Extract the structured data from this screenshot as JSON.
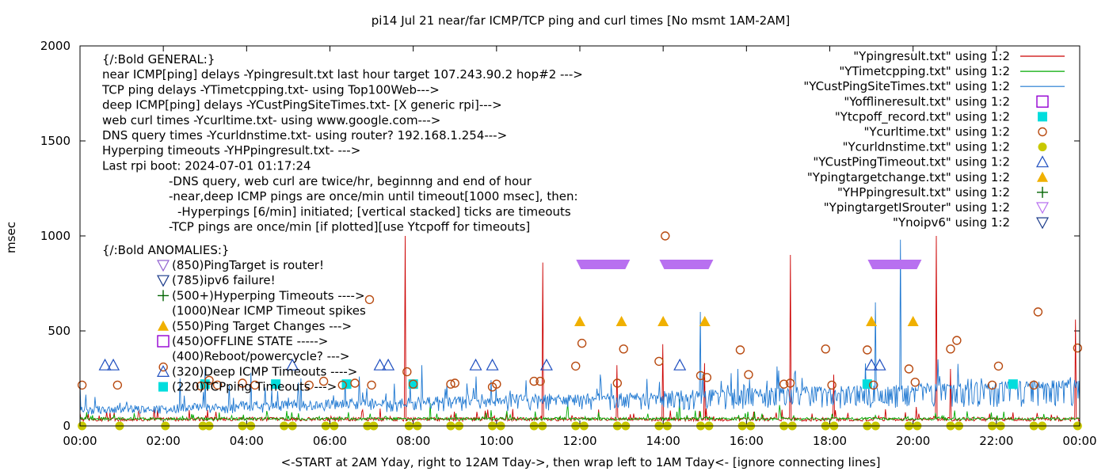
{
  "chart_data": {
    "type": "line",
    "title": "pi14 Jul 21  near/far ICMP/TCP ping and curl times [No msmt 1AM-2AM]",
    "xlabel": "<-START at 2AM Yday, right to 12AM Tday->, then wrap left to 1AM Tday<- [ignore connecting lines]",
    "ylabel": "msec",
    "xlim": [
      0,
      24
    ],
    "ylim": [
      0,
      2000
    ],
    "x_ticks": [
      "00:00",
      "02:00",
      "04:00",
      "06:00",
      "08:00",
      "10:00",
      "12:00",
      "14:00",
      "16:00",
      "18:00",
      "20:00",
      "22:00",
      "00:00"
    ],
    "y_ticks": [
      "0",
      "500",
      "1000",
      "1500",
      "2000"
    ],
    "grid": false,
    "legend_position": "top-right",
    "annotations": {
      "general": [
        "{/:Bold GENERAL:}",
        "near ICMP[ping] delays -Ypingresult.txt last hour target 107.243.90.2 hop#2 --->",
        "TCP ping delays -YTimetcpping.txt- using Top100Web--->",
        "deep ICMP[ping] delays -YCustPingSiteTimes.txt- [X generic rpi]--->",
        "web curl times -Ycurltime.txt- using www.google.com--->",
        "DNS query times -Ycurldnstime.txt- using router? 192.168.1.254--->",
        "Hyperping timeouts -YHPpingresult.txt- --->",
        "Last rpi boot: 2024-07-01 01:17:24"
      ],
      "notes": [
        "-DNS query, web curl are twice/hr, beginnng and end of hour",
        "-near,deep ICMP pings are once/min until timeout[1000 msec], then:",
        "-Hyperpings [6/min] initiated; [vertical stacked] ticks are timeouts",
        "-TCP pings are once/min [if plotted][use Ytcpoff for timeouts]"
      ],
      "anomalies_title": "{/:Bold ANOMALIES:}",
      "anomalies": [
        {
          "marker": "tri-down-violet",
          "text": "(850)PingTarget is router!"
        },
        {
          "marker": "tri-down-navy",
          "text": "(785)ipv6 failure!"
        },
        {
          "marker": "plus-green",
          "text": "(500+)Hyperping Timeouts ---->"
        },
        {
          "marker": "none",
          "text": "(1000)Near ICMP Timeout spikes"
        },
        {
          "marker": "tri-up-orange",
          "text": "(550)Ping Target Changes --->"
        },
        {
          "marker": "square-open-purple",
          "text": "(450)OFFLINE STATE ----->"
        },
        {
          "marker": "none",
          "text": "(400)Reboot/powercycle? --->"
        },
        {
          "marker": "tri-up-blue",
          "text": "(320)Deep ICMP Timeouts ---->"
        },
        {
          "marker": "square-cyan",
          "text": "(220)TCPping Timeouts --->"
        }
      ]
    },
    "colors": {
      "Ypingresult": "#cc0000",
      "YTimetcpping": "#00aa00",
      "YCustPingSiteTimes": "#1f78d1",
      "Yofflineresult": "#9400d3",
      "Ytcpoff_record": "#00dddd",
      "Ycurltime": "#b84a10",
      "Ycurldnstime": "#c8c800",
      "YCustPingTimeout": "#2050c0",
      "Ypingtargetchange": "#f0b000",
      "YHPpingresult": "#006400",
      "YpingtargetISrouter": "#9060d0",
      "Ynoipv6": "#1a3a8a",
      "router_band": "#b870f0"
    },
    "series": [
      {
        "name": "\"Ypingresult.txt\" using 1:2",
        "style": "line",
        "color": "#cc0000",
        "base": 25,
        "noise": 20,
        "spikes": [
          [
            7.8,
            1000
          ],
          [
            11.1,
            860
          ],
          [
            12.9,
            320
          ],
          [
            14.0,
            430
          ],
          [
            15.0,
            330
          ],
          [
            17.05,
            900
          ],
          [
            18.1,
            270
          ],
          [
            20.55,
            1000
          ],
          [
            20.9,
            300
          ],
          [
            23.9,
            560
          ]
        ]
      },
      {
        "name": "\"YTimetcpping.txt\" using 1:2",
        "style": "line",
        "color": "#00aa00",
        "base": 30,
        "noise": 15,
        "spikes": [
          [
            8.4,
            120
          ],
          [
            11.7,
            120
          ],
          [
            14.4,
            140
          ],
          [
            16.8,
            110
          ]
        ]
      },
      {
        "name": "\"YCustPingSiteTimes.txt\" using 1:2",
        "style": "line",
        "color": "#1f78d1",
        "base": 60,
        "noise": 45,
        "spikes": [
          [
            2.4,
            250
          ],
          [
            3.0,
            300
          ],
          [
            4.1,
            280
          ],
          [
            5.3,
            250
          ],
          [
            6.7,
            260
          ],
          [
            8.2,
            320
          ],
          [
            10.7,
            240
          ],
          [
            12.5,
            270
          ],
          [
            14.9,
            600
          ],
          [
            15.8,
            300
          ],
          [
            19.1,
            650
          ],
          [
            19.7,
            980
          ],
          [
            20.6,
            350
          ],
          [
            22.9,
            240
          ]
        ]
      },
      {
        "name": "\"Yofflineresult.txt\" using 1:2",
        "style": "square-open",
        "color": "#9400d3",
        "points": []
      },
      {
        "name": "\"Ytcpoff_record.txt\" using 1:2",
        "style": "square",
        "color": "#00dddd",
        "points": [
          [
            3.0,
            220
          ],
          [
            4.7,
            220
          ],
          [
            6.4,
            220
          ],
          [
            8.0,
            220
          ],
          [
            18.9,
            220
          ],
          [
            22.4,
            220
          ]
        ]
      },
      {
        "name": "\"Ycurltime.txt\" using 1:2",
        "style": "circle",
        "color": "#b84a10",
        "points": [
          [
            0.05,
            215
          ],
          [
            0.9,
            215
          ],
          [
            2.0,
            310
          ],
          [
            2.9,
            210
          ],
          [
            3.1,
            240
          ],
          [
            3.3,
            215
          ],
          [
            3.9,
            225
          ],
          [
            4.2,
            215
          ],
          [
            5.5,
            215
          ],
          [
            5.85,
            235
          ],
          [
            6.3,
            215
          ],
          [
            6.6,
            225
          ],
          [
            6.95,
            665
          ],
          [
            7.0,
            215
          ],
          [
            7.85,
            285
          ],
          [
            8.0,
            220
          ],
          [
            8.9,
            220
          ],
          [
            9.0,
            225
          ],
          [
            9.9,
            205
          ],
          [
            10.0,
            220
          ],
          [
            10.9,
            235
          ],
          [
            11.05,
            235
          ],
          [
            11.9,
            315
          ],
          [
            12.05,
            435
          ],
          [
            12.9,
            225
          ],
          [
            13.05,
            405
          ],
          [
            13.9,
            340
          ],
          [
            14.05,
            1000
          ],
          [
            14.9,
            265
          ],
          [
            15.05,
            255
          ],
          [
            15.85,
            400
          ],
          [
            16.05,
            270
          ],
          [
            16.9,
            220
          ],
          [
            17.05,
            225
          ],
          [
            17.9,
            405
          ],
          [
            18.05,
            215
          ],
          [
            18.9,
            400
          ],
          [
            19.05,
            215
          ],
          [
            19.9,
            300
          ],
          [
            20.05,
            230
          ],
          [
            20.9,
            405
          ],
          [
            21.05,
            450
          ],
          [
            21.9,
            215
          ],
          [
            22.05,
            315
          ],
          [
            22.9,
            215
          ],
          [
            23.0,
            600
          ],
          [
            23.95,
            410
          ]
        ]
      },
      {
        "name": "\"Ycurldnstime.txt\" using 1:2",
        "style": "dot",
        "color": "#c8c800",
        "points": [
          [
            0.05,
            0
          ],
          [
            0.95,
            0
          ],
          [
            2.05,
            0
          ],
          [
            2.95,
            0
          ],
          [
            3.1,
            0
          ],
          [
            3.9,
            0
          ],
          [
            4.1,
            0
          ],
          [
            4.9,
            0
          ],
          [
            5.1,
            0
          ],
          [
            5.9,
            0
          ],
          [
            6.1,
            0
          ],
          [
            6.9,
            0
          ],
          [
            7.05,
            0
          ],
          [
            7.9,
            0
          ],
          [
            8.1,
            0
          ],
          [
            8.9,
            0
          ],
          [
            9.1,
            0
          ],
          [
            9.9,
            0
          ],
          [
            10.1,
            0
          ],
          [
            10.9,
            0
          ],
          [
            11.1,
            0
          ],
          [
            11.9,
            0
          ],
          [
            12.1,
            0
          ],
          [
            12.9,
            0
          ],
          [
            13.1,
            0
          ],
          [
            13.9,
            0
          ],
          [
            14.1,
            0
          ],
          [
            14.9,
            0
          ],
          [
            15.1,
            0
          ],
          [
            15.9,
            0
          ],
          [
            16.1,
            0
          ],
          [
            16.9,
            0
          ],
          [
            17.1,
            0
          ],
          [
            17.9,
            0
          ],
          [
            18.1,
            0
          ],
          [
            18.9,
            0
          ],
          [
            19.1,
            0
          ],
          [
            19.9,
            0
          ],
          [
            20.1,
            0
          ],
          [
            20.9,
            0
          ],
          [
            21.1,
            0
          ],
          [
            21.9,
            0
          ],
          [
            22.1,
            0
          ],
          [
            22.9,
            0
          ],
          [
            23.1,
            0
          ],
          [
            23.95,
            0
          ]
        ]
      },
      {
        "name": "\"YCustPingTimeout.txt\" using 1:2",
        "style": "triangle-up-open",
        "color": "#2050c0",
        "points": [
          [
            0.6,
            320
          ],
          [
            0.8,
            320
          ],
          [
            5.1,
            320
          ],
          [
            7.2,
            320
          ],
          [
            7.4,
            320
          ],
          [
            9.5,
            320
          ],
          [
            9.9,
            320
          ],
          [
            11.2,
            320
          ],
          [
            14.4,
            320
          ],
          [
            19.0,
            320
          ],
          [
            19.2,
            320
          ]
        ]
      },
      {
        "name": "\"Ypingtargetchange.txt\" using 1:2",
        "style": "triangle-up",
        "color": "#f0b000",
        "points": [
          [
            12.0,
            550
          ],
          [
            13.0,
            550
          ],
          [
            14.0,
            550
          ],
          [
            15.0,
            550
          ],
          [
            19.0,
            550
          ],
          [
            20.0,
            550
          ]
        ]
      },
      {
        "name": "\"YHPpingresult.txt\" using 1:2",
        "style": "plus",
        "color": "#006400",
        "points": []
      },
      {
        "name": "\"YpingtargetISrouter\" using 1:2",
        "style": "router-band",
        "color": "#b870f0",
        "points": [
          [
            12.0,
            12.05,
            850
          ],
          [
            14.0,
            14.05,
            850
          ],
          [
            19.0,
            19.05,
            850
          ]
        ]
      },
      {
        "name": "\"Ynoipv6\" using 1:2",
        "style": "triangle-down-open",
        "color": "#1a3a8a",
        "points": []
      }
    ]
  }
}
